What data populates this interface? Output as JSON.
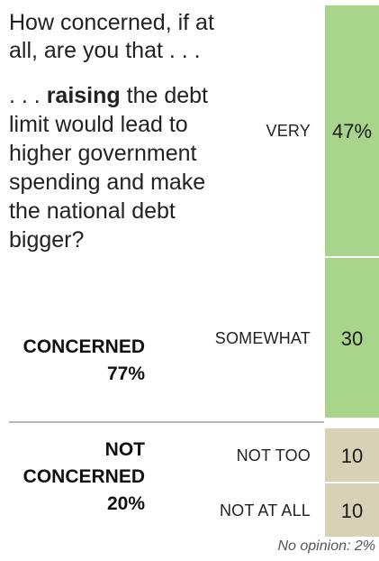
{
  "question": {
    "intro": "How concerned, if at all, are you that . . .",
    "prefix": ". . . ",
    "bold": "raising",
    "rest": " the debt limit would lead to higher government spending and make the national debt bigger?"
  },
  "groups": {
    "concerned": {
      "label": "CONCERNED",
      "value": "77%"
    },
    "not_concerned": {
      "label_line1": "NOT",
      "label_line2": "CONCERNED",
      "value": "20%"
    }
  },
  "note": "No opinion: 2%",
  "colors": {
    "concerned": "#a9d48b",
    "not_concerned": "#d9d0b8"
  },
  "chart_data": {
    "type": "bar",
    "orientation": "stacked-vertical",
    "categories": [
      "VERY",
      "SOMEWHAT",
      "NOT TOO",
      "NOT AT ALL"
    ],
    "values": [
      47,
      30,
      10,
      10
    ],
    "value_labels": [
      "47%",
      "30",
      "10",
      "10"
    ],
    "groups": [
      {
        "name": "CONCERNED",
        "total": 77,
        "categories": [
          "VERY",
          "SOMEWHAT"
        ]
      },
      {
        "name": "NOT CONCERNED",
        "total": 20,
        "categories": [
          "NOT TOO",
          "NOT AT ALL"
        ]
      }
    ],
    "no_opinion": 2
  }
}
